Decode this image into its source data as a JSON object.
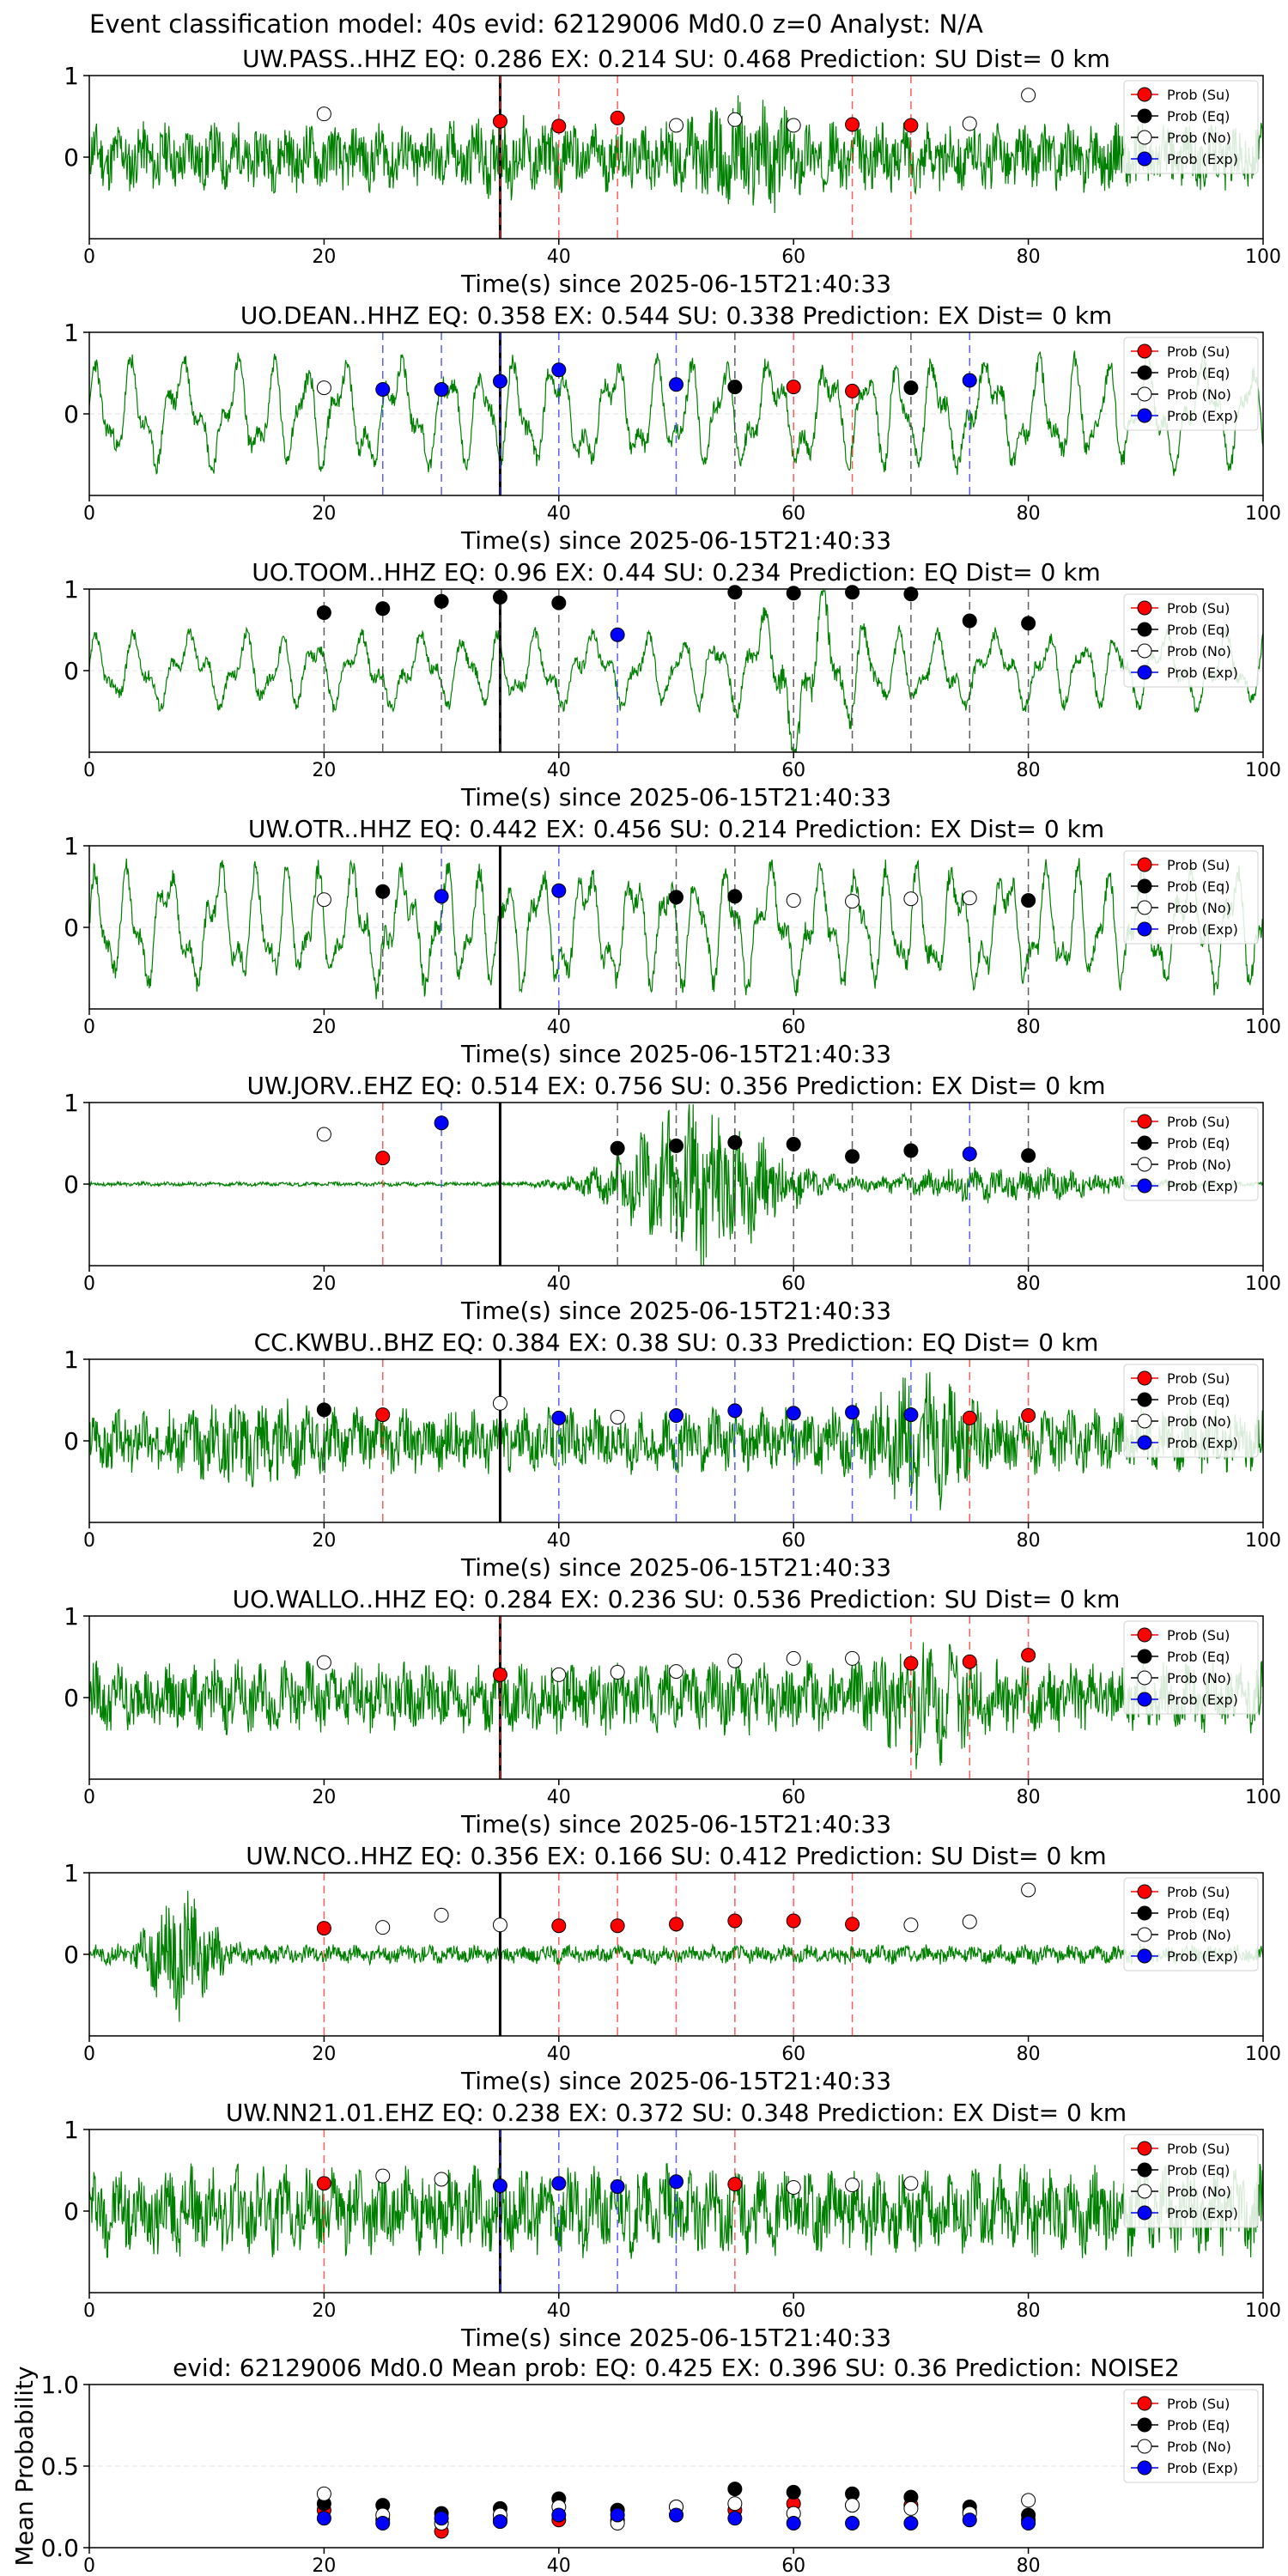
{
  "suptitle": "Event classification model: 40s evid: 62129006 Md0.0 z=0 Analyst: N/A",
  "legend_labels": [
    "Prob (Su)",
    "Prob (Eq)",
    "Prob (No)",
    "Prob (Exp)"
  ],
  "colors": {
    "su": "#ff0000",
    "eq": "#000000",
    "no": "#ffffff",
    "exp": "#0000ff",
    "trace": "#008000"
  },
  "chart_data": [
    {
      "type": "line",
      "title": "UW.PASS..HHZ   EQ: 0.286  EX: 0.214  SU: 0.468   Prediction: SU    Dist= 0 km",
      "xlabel": "Time(s) since 2025-06-15T21:40:33",
      "xlim": [
        0,
        100
      ],
      "ylim": [
        -1,
        1
      ],
      "xticks": [
        0,
        20,
        40,
        60,
        80,
        100
      ],
      "yticks": [
        0,
        1
      ],
      "trace": {
        "style": "noise",
        "amp": 0.32,
        "seed": 11,
        "events": [
          {
            "t": 35,
            "gain": 1.2
          },
          {
            "t": 56,
            "gain": 1.8
          }
        ]
      },
      "arrival_line": 35,
      "points": [
        {
          "t": 20,
          "cls": "no",
          "p": 0.53
        },
        {
          "t": 35,
          "cls": "su",
          "p": 0.44
        },
        {
          "t": 40,
          "cls": "su",
          "p": 0.38
        },
        {
          "t": 45,
          "cls": "su",
          "p": 0.48
        },
        {
          "t": 50,
          "cls": "no",
          "p": 0.39
        },
        {
          "t": 55,
          "cls": "no",
          "p": 0.46
        },
        {
          "t": 60,
          "cls": "no",
          "p": 0.39
        },
        {
          "t": 65,
          "cls": "su",
          "p": 0.4
        },
        {
          "t": 70,
          "cls": "su",
          "p": 0.39
        },
        {
          "t": 75,
          "cls": "no",
          "p": 0.41
        },
        {
          "t": 80,
          "cls": "no",
          "p": 0.76
        }
      ]
    },
    {
      "type": "line",
      "title": "UO.DEAN..HHZ   EQ: 0.358  EX: 0.544  SU: 0.338   Prediction: EX    Dist= 0 km",
      "xlabel": "Time(s) since 2025-06-15T21:40:33",
      "xlim": [
        0,
        100
      ],
      "ylim": [
        -1,
        1
      ],
      "xticks": [
        0,
        20,
        40,
        60,
        80,
        100
      ],
      "yticks": [
        0,
        1
      ],
      "trace": {
        "style": "wave",
        "amp": 0.62,
        "seed": 23,
        "period": 3.6
      },
      "arrival_line": 35,
      "points": [
        {
          "t": 20,
          "cls": "no",
          "p": 0.32
        },
        {
          "t": 25,
          "cls": "exp",
          "p": 0.3
        },
        {
          "t": 30,
          "cls": "exp",
          "p": 0.3
        },
        {
          "t": 35,
          "cls": "exp",
          "p": 0.4
        },
        {
          "t": 40,
          "cls": "exp",
          "p": 0.54
        },
        {
          "t": 50,
          "cls": "exp",
          "p": 0.36
        },
        {
          "t": 55,
          "cls": "eq",
          "p": 0.33
        },
        {
          "t": 60,
          "cls": "su",
          "p": 0.33
        },
        {
          "t": 65,
          "cls": "su",
          "p": 0.28
        },
        {
          "t": 70,
          "cls": "eq",
          "p": 0.32
        },
        {
          "t": 75,
          "cls": "exp",
          "p": 0.41
        }
      ]
    },
    {
      "type": "line",
      "title": "UO.TOOM..HHZ   EQ: 0.96  EX: 0.44  SU: 0.234   Prediction: EQ    Dist= 0 km",
      "xlabel": "Time(s) since 2025-06-15T21:40:33",
      "xlim": [
        0,
        100
      ],
      "ylim": [
        -1,
        1
      ],
      "xticks": [
        0,
        20,
        40,
        60,
        80,
        100
      ],
      "yticks": [
        0,
        1
      ],
      "trace": {
        "style": "wave",
        "amp": 0.42,
        "seed": 37,
        "period": 3.8,
        "events": [
          {
            "t": 61,
            "gain": 2.4
          }
        ]
      },
      "arrival_line": 35,
      "points": [
        {
          "t": 20,
          "cls": "eq",
          "p": 0.71
        },
        {
          "t": 25,
          "cls": "eq",
          "p": 0.76
        },
        {
          "t": 30,
          "cls": "eq",
          "p": 0.85
        },
        {
          "t": 35,
          "cls": "eq",
          "p": 0.9
        },
        {
          "t": 40,
          "cls": "eq",
          "p": 0.83
        },
        {
          "t": 45,
          "cls": "exp",
          "p": 0.44
        },
        {
          "t": 55,
          "cls": "eq",
          "p": 0.96
        },
        {
          "t": 60,
          "cls": "eq",
          "p": 0.95
        },
        {
          "t": 65,
          "cls": "eq",
          "p": 0.96
        },
        {
          "t": 70,
          "cls": "eq",
          "p": 0.94
        },
        {
          "t": 75,
          "cls": "eq",
          "p": 0.61
        },
        {
          "t": 80,
          "cls": "eq",
          "p": 0.58
        }
      ]
    },
    {
      "type": "line",
      "title": "UW.OTR..HHZ   EQ: 0.442  EX: 0.456  SU: 0.214   Prediction: EX    Dist= 0 km",
      "xlabel": "Time(s) since 2025-06-15T21:40:33",
      "xlim": [
        0,
        100
      ],
      "ylim": [
        -1,
        1
      ],
      "xticks": [
        0,
        20,
        40,
        60,
        80,
        100
      ],
      "yticks": [
        0,
        1
      ],
      "trace": {
        "style": "wave",
        "amp": 0.7,
        "seed": 41,
        "period": 3.2
      },
      "arrival_line": 35,
      "points": [
        {
          "t": 20,
          "cls": "no",
          "p": 0.34
        },
        {
          "t": 25,
          "cls": "eq",
          "p": 0.44
        },
        {
          "t": 30,
          "cls": "exp",
          "p": 0.38
        },
        {
          "t": 40,
          "cls": "exp",
          "p": 0.45
        },
        {
          "t": 50,
          "cls": "eq",
          "p": 0.37
        },
        {
          "t": 55,
          "cls": "eq",
          "p": 0.38
        },
        {
          "t": 60,
          "cls": "no",
          "p": 0.33
        },
        {
          "t": 65,
          "cls": "no",
          "p": 0.32
        },
        {
          "t": 70,
          "cls": "no",
          "p": 0.35
        },
        {
          "t": 75,
          "cls": "no",
          "p": 0.36
        },
        {
          "t": 80,
          "cls": "eq",
          "p": 0.33
        }
      ]
    },
    {
      "type": "line",
      "title": "UW.JORV..EHZ   EQ: 0.514  EX: 0.756  SU: 0.356   Prediction: EX    Dist= 0 km",
      "xlabel": "Time(s) since 2025-06-15T21:40:33",
      "xlim": [
        0,
        100
      ],
      "ylim": [
        -1,
        1
      ],
      "xticks": [
        0,
        20,
        40,
        60,
        80,
        100
      ],
      "yticks": [
        0,
        1
      ],
      "trace": {
        "style": "burst",
        "amp": 0.02,
        "seed": 53,
        "events": [
          {
            "t": 52,
            "gain": 40,
            "width": 7
          },
          {
            "t": 78,
            "gain": 9,
            "width": 10
          }
        ]
      },
      "arrival_line": 35,
      "points": [
        {
          "t": 20,
          "cls": "no",
          "p": 0.61
        },
        {
          "t": 25,
          "cls": "su",
          "p": 0.32
        },
        {
          "t": 30,
          "cls": "exp",
          "p": 0.75
        },
        {
          "t": 45,
          "cls": "eq",
          "p": 0.44
        },
        {
          "t": 50,
          "cls": "eq",
          "p": 0.47
        },
        {
          "t": 55,
          "cls": "eq",
          "p": 0.51
        },
        {
          "t": 60,
          "cls": "eq",
          "p": 0.49
        },
        {
          "t": 65,
          "cls": "eq",
          "p": 0.34
        },
        {
          "t": 70,
          "cls": "eq",
          "p": 0.41
        },
        {
          "t": 75,
          "cls": "exp",
          "p": 0.37
        },
        {
          "t": 80,
          "cls": "eq",
          "p": 0.35
        }
      ]
    },
    {
      "type": "line",
      "title": "CC.KWBU..BHZ   EQ: 0.384  EX: 0.38  SU: 0.33   Prediction: EQ    Dist= 0 km",
      "xlabel": "Time(s) since 2025-06-15T21:40:33",
      "xlim": [
        0,
        100
      ],
      "ylim": [
        -1,
        1
      ],
      "xticks": [
        0,
        20,
        40,
        60,
        80,
        100
      ],
      "yticks": [
        0,
        1
      ],
      "trace": {
        "style": "noise",
        "amp": 0.3,
        "seed": 67,
        "events": [
          {
            "t": 14,
            "gain": 1.6
          },
          {
            "t": 71,
            "gain": 2.2
          }
        ]
      },
      "arrival_line": 35,
      "points": [
        {
          "t": 20,
          "cls": "eq",
          "p": 0.38
        },
        {
          "t": 25,
          "cls": "su",
          "p": 0.32
        },
        {
          "t": 35,
          "cls": "no",
          "p": 0.46
        },
        {
          "t": 40,
          "cls": "exp",
          "p": 0.28
        },
        {
          "t": 45,
          "cls": "no",
          "p": 0.29
        },
        {
          "t": 50,
          "cls": "exp",
          "p": 0.31
        },
        {
          "t": 55,
          "cls": "exp",
          "p": 0.37
        },
        {
          "t": 60,
          "cls": "exp",
          "p": 0.34
        },
        {
          "t": 65,
          "cls": "exp",
          "p": 0.35
        },
        {
          "t": 70,
          "cls": "exp",
          "p": 0.32
        },
        {
          "t": 75,
          "cls": "su",
          "p": 0.28
        },
        {
          "t": 80,
          "cls": "su",
          "p": 0.31
        }
      ]
    },
    {
      "type": "line",
      "title": "UO.WALLO..HHZ   EQ: 0.284  EX: 0.236  SU: 0.536   Prediction: SU    Dist= 0 km",
      "xlabel": "Time(s) since 2025-06-15T21:40:33",
      "xlim": [
        0,
        100
      ],
      "ylim": [
        -1,
        1
      ],
      "xticks": [
        0,
        20,
        40,
        60,
        80,
        100
      ],
      "yticks": [
        0,
        1
      ],
      "trace": {
        "style": "noise",
        "amp": 0.34,
        "seed": 79,
        "events": [
          {
            "t": 71,
            "gain": 1.9
          }
        ]
      },
      "arrival_line": 35,
      "points": [
        {
          "t": 20,
          "cls": "no",
          "p": 0.43
        },
        {
          "t": 35,
          "cls": "su",
          "p": 0.28
        },
        {
          "t": 40,
          "cls": "no",
          "p": 0.28
        },
        {
          "t": 45,
          "cls": "no",
          "p": 0.31
        },
        {
          "t": 50,
          "cls": "no",
          "p": 0.32
        },
        {
          "t": 55,
          "cls": "no",
          "p": 0.45
        },
        {
          "t": 60,
          "cls": "no",
          "p": 0.48
        },
        {
          "t": 65,
          "cls": "no",
          "p": 0.48
        },
        {
          "t": 70,
          "cls": "su",
          "p": 0.42
        },
        {
          "t": 75,
          "cls": "su",
          "p": 0.44
        },
        {
          "t": 80,
          "cls": "su",
          "p": 0.52
        }
      ]
    },
    {
      "type": "line",
      "title": "UW.NCO..HHZ   EQ: 0.356  EX: 0.166  SU: 0.412   Prediction: SU    Dist= 0 km",
      "xlabel": "Time(s) since 2025-06-15T21:40:33",
      "xlim": [
        0,
        100
      ],
      "ylim": [
        -1,
        1
      ],
      "xticks": [
        0,
        20,
        40,
        60,
        80,
        100
      ],
      "yticks": [
        0,
        1
      ],
      "trace": {
        "style": "burst",
        "amp": 0.09,
        "seed": 83,
        "events": [
          {
            "t": 8,
            "gain": 7,
            "width": 3
          }
        ]
      },
      "arrival_line": 35,
      "points": [
        {
          "t": 20,
          "cls": "su",
          "p": 0.32
        },
        {
          "t": 25,
          "cls": "no",
          "p": 0.33
        },
        {
          "t": 30,
          "cls": "no",
          "p": 0.48
        },
        {
          "t": 35,
          "cls": "no",
          "p": 0.36
        },
        {
          "t": 40,
          "cls": "su",
          "p": 0.35
        },
        {
          "t": 45,
          "cls": "su",
          "p": 0.35
        },
        {
          "t": 50,
          "cls": "su",
          "p": 0.37
        },
        {
          "t": 55,
          "cls": "su",
          "p": 0.41
        },
        {
          "t": 60,
          "cls": "su",
          "p": 0.41
        },
        {
          "t": 65,
          "cls": "su",
          "p": 0.37
        },
        {
          "t": 70,
          "cls": "no",
          "p": 0.36
        },
        {
          "t": 75,
          "cls": "no",
          "p": 0.4
        },
        {
          "t": 80,
          "cls": "no",
          "p": 0.79
        }
      ]
    },
    {
      "type": "line",
      "title": "UW.NN21.01.EHZ   EQ: 0.238  EX: 0.372  SU: 0.348   Prediction: EX    Dist= 0 km",
      "xlabel": "Time(s) since 2025-06-15T21:40:33",
      "xlim": [
        0,
        100
      ],
      "ylim": [
        -1,
        1
      ],
      "xticks": [
        0,
        20,
        40,
        60,
        80,
        100
      ],
      "yticks": [
        0,
        1
      ],
      "trace": {
        "style": "noise",
        "amp": 0.42,
        "seed": 97
      },
      "arrival_line": 35,
      "points": [
        {
          "t": 20,
          "cls": "su",
          "p": 0.34
        },
        {
          "t": 25,
          "cls": "no",
          "p": 0.43
        },
        {
          "t": 30,
          "cls": "no",
          "p": 0.39
        },
        {
          "t": 35,
          "cls": "exp",
          "p": 0.31
        },
        {
          "t": 40,
          "cls": "exp",
          "p": 0.34
        },
        {
          "t": 45,
          "cls": "exp",
          "p": 0.3
        },
        {
          "t": 50,
          "cls": "exp",
          "p": 0.36
        },
        {
          "t": 55,
          "cls": "su",
          "p": 0.33
        },
        {
          "t": 60,
          "cls": "no",
          "p": 0.29
        },
        {
          "t": 65,
          "cls": "no",
          "p": 0.32
        },
        {
          "t": 70,
          "cls": "no",
          "p": 0.34
        }
      ]
    },
    {
      "type": "scatter",
      "title": "evid: 62129006  Md0.0   Mean prob:    EQ: 0.425  EX: 0.396  SU: 0.36   Prediction: NOISE2",
      "xlabel": "",
      "ylabel": "Mean Probability",
      "xlim": [
        0,
        100
      ],
      "ylim": [
        0,
        1
      ],
      "xticks": [
        0,
        20,
        40,
        60,
        80
      ],
      "yticks": [
        0,
        0.5,
        1
      ],
      "ytick_labels": [
        "0.0",
        "0.5",
        "1.0"
      ],
      "x": [
        20,
        25,
        30,
        35,
        40,
        45,
        50,
        55,
        60,
        65,
        70,
        75,
        80
      ],
      "series": [
        {
          "name": "Prob (Su)",
          "cls": "su",
          "values": [
            0.23,
            0.17,
            0.1,
            0.17,
            0.17,
            0.17,
            0.2,
            0.23,
            0.27,
            0.26,
            0.26,
            0.22,
            0.17
          ]
        },
        {
          "name": "Prob (Eq)",
          "cls": "eq",
          "values": [
            0.27,
            0.26,
            0.21,
            0.24,
            0.3,
            0.23,
            0.25,
            0.36,
            0.34,
            0.33,
            0.31,
            0.25,
            0.2
          ]
        },
        {
          "name": "Prob (No)",
          "cls": "no",
          "values": [
            0.33,
            0.2,
            0.15,
            0.2,
            0.25,
            0.15,
            0.25,
            0.27,
            0.21,
            0.26,
            0.24,
            0.21,
            0.29
          ]
        },
        {
          "name": "Prob (Exp)",
          "cls": "exp",
          "values": [
            0.18,
            0.15,
            0.18,
            0.16,
            0.2,
            0.2,
            0.2,
            0.18,
            0.15,
            0.15,
            0.15,
            0.17,
            0.15
          ]
        }
      ]
    }
  ]
}
